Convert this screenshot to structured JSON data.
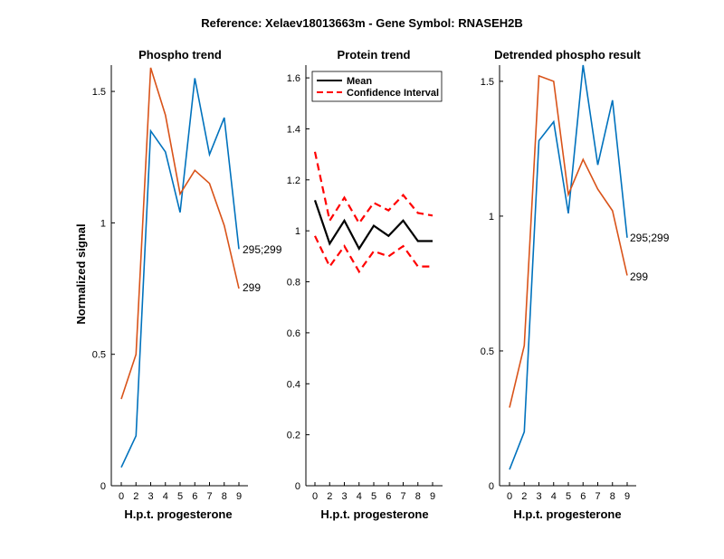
{
  "suptitle": "Reference:  Xelaev18013663m - Gene Symbol:  RNASEH2B",
  "colors": {
    "blue": "#0072BD",
    "orange": "#D95319",
    "black": "#000000",
    "red": "#FF0000"
  },
  "chart_data": [
    {
      "type": "line",
      "title": "Phospho trend",
      "xlabel": "H.p.t. progesterone",
      "ylabel": "Normalized signal",
      "categories": [
        "0",
        "2",
        "3",
        "4",
        "5",
        "6",
        "7",
        "8",
        "9"
      ],
      "ylim": [
        0,
        1.6
      ],
      "yticks": [
        0,
        0.5,
        1,
        1.5
      ],
      "ytick_labels": [
        "0",
        "0.5",
        "1",
        "1.5"
      ],
      "series": [
        {
          "name": "295;299",
          "color": "#0072BD",
          "values": [
            0.07,
            0.19,
            1.35,
            1.27,
            1.04,
            1.55,
            1.26,
            1.4,
            0.9
          ]
        },
        {
          "name": "299",
          "color": "#D95319",
          "values": [
            0.33,
            0.5,
            1.59,
            1.41,
            1.11,
            1.2,
            1.15,
            0.99,
            0.75
          ]
        }
      ],
      "end_labels": [
        "295;299",
        "299"
      ]
    },
    {
      "type": "line",
      "title": "Protein trend",
      "xlabel": "H.p.t. progesterone",
      "ylabel": "",
      "categories": [
        "0",
        "2",
        "3",
        "4",
        "5",
        "6",
        "7",
        "8",
        "9"
      ],
      "ylim": [
        0,
        1.65
      ],
      "yticks": [
        0,
        0.2,
        0.4,
        0.6,
        0.8,
        1,
        1.2,
        1.4,
        1.6
      ],
      "ytick_labels": [
        "0",
        "0.2",
        "0.4",
        "0.6",
        "0.8",
        "1",
        "1.2",
        "1.4",
        "1.6"
      ],
      "legend": {
        "placement": "top-left",
        "entries": [
          "Mean",
          "Confidence Interval"
        ]
      },
      "series": [
        {
          "name": "Mean",
          "color": "#000000",
          "style": "solid",
          "values": [
            1.12,
            0.95,
            1.04,
            0.93,
            1.02,
            0.98,
            1.04,
            0.96,
            0.96
          ]
        },
        {
          "name": "Confidence Interval upper",
          "color": "#FF0000",
          "style": "dashed",
          "values": [
            1.31,
            1.04,
            1.13,
            1.03,
            1.11,
            1.08,
            1.14,
            1.07,
            1.06
          ]
        },
        {
          "name": "Confidence Interval lower",
          "color": "#FF0000",
          "style": "dashed",
          "values": [
            0.98,
            0.86,
            0.94,
            0.84,
            0.92,
            0.9,
            0.94,
            0.86,
            0.86
          ]
        }
      ]
    },
    {
      "type": "line",
      "title": "Detrended phospho result",
      "xlabel": "H.p.t. progesterone",
      "ylabel": "",
      "categories": [
        "0",
        "2",
        "3",
        "4",
        "5",
        "6",
        "7",
        "8",
        "9"
      ],
      "ylim": [
        0,
        1.56
      ],
      "yticks": [
        0,
        0.5,
        1,
        1.5
      ],
      "ytick_labels": [
        "0",
        "0.5",
        "1",
        "1.5"
      ],
      "series": [
        {
          "name": "295;299",
          "color": "#0072BD",
          "values": [
            0.06,
            0.2,
            1.28,
            1.35,
            1.01,
            1.56,
            1.19,
            1.43,
            0.92
          ]
        },
        {
          "name": "299",
          "color": "#D95319",
          "values": [
            0.29,
            0.52,
            1.52,
            1.5,
            1.08,
            1.21,
            1.1,
            1.02,
            0.78
          ]
        }
      ],
      "end_labels": [
        "295;299",
        "299"
      ]
    }
  ]
}
